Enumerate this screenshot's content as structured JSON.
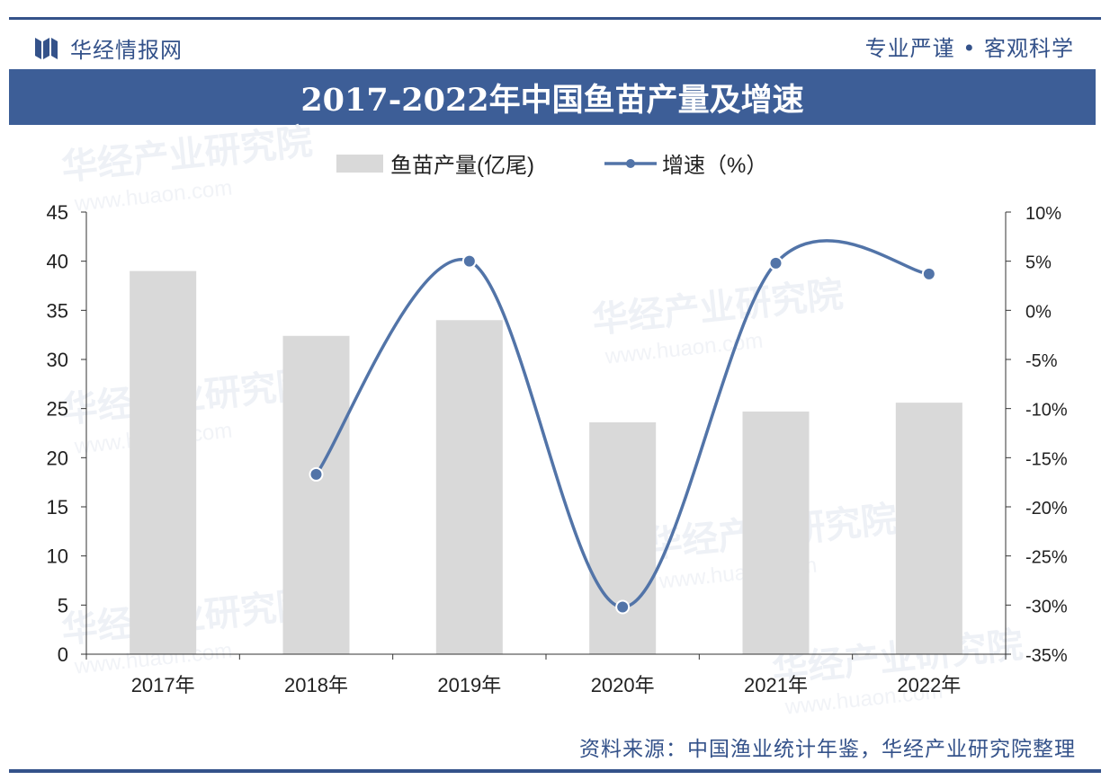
{
  "header": {
    "brand": "华经情报网",
    "slogan": "专业严谨 • 客观科学",
    "title": "2017-2022年中国鱼苗产量及增速"
  },
  "footer": {
    "source": "资料来源：中国渔业统计年鉴，华经产业研究院整理"
  },
  "watermark": {
    "text": "华经产业研究院",
    "url": "www.huaon.com"
  },
  "colors": {
    "bar": "#d9d9d9",
    "line": "#5274a8",
    "header": "#3d5e97",
    "text": "#34528a"
  },
  "chart_data": {
    "type": "bar",
    "categories": [
      "2017年",
      "2018年",
      "2019年",
      "2020年",
      "2021年",
      "2022年"
    ],
    "series": [
      {
        "name": "鱼苗产量(亿尾)",
        "type": "bar",
        "axis": "left",
        "values": [
          39.0,
          32.4,
          34.0,
          23.6,
          24.7,
          25.6
        ]
      },
      {
        "name": "增速（%）",
        "type": "line",
        "axis": "right",
        "smooth": true,
        "values": [
          null,
          -16.7,
          5.0,
          -30.2,
          4.8,
          3.7
        ]
      }
    ],
    "y_left": {
      "min": 0,
      "max": 45,
      "ticks": [
        0,
        5,
        10,
        15,
        20,
        25,
        30,
        35,
        40,
        45
      ]
    },
    "y_right": {
      "min": -35,
      "max": 10,
      "ticks": [
        10,
        5,
        0,
        -5,
        -10,
        -15,
        -20,
        -25,
        -30,
        -35
      ],
      "tick_labels": [
        "10%",
        "5%",
        "0%",
        "-5%",
        "-10%",
        "-15%",
        "-20%",
        "-25%",
        "-30%",
        "-35%"
      ]
    },
    "legend_position": "top-center",
    "grid": false
  }
}
